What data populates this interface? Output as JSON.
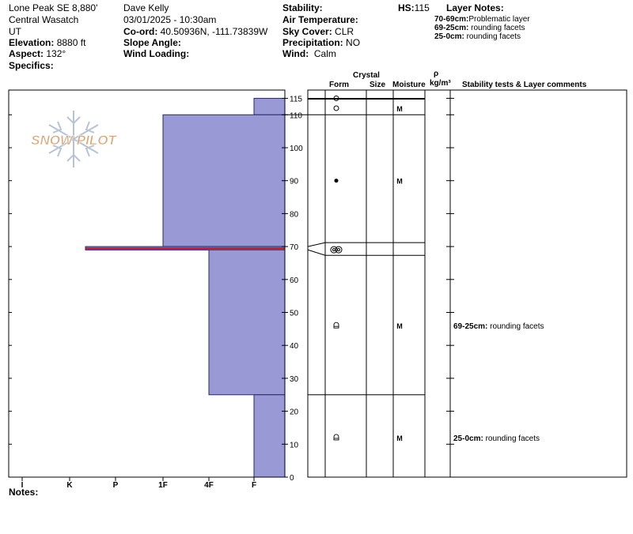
{
  "header": {
    "col1": {
      "location": "Lone Peak SE 8,880'",
      "range": "Central Wasatch",
      "state": "UT",
      "elevation_label": "Elevation:",
      "elevation_value": "8880 ft",
      "aspect_label": "Aspect:",
      "aspect_value": "132°",
      "specifics_label": "Specifics:"
    },
    "col2": {
      "observer": "Dave Kelly",
      "datetime": "03/01/2025 - 10:30am",
      "coord_label": "Co-ord:",
      "coord_value": "40.50936N, -111.73839W",
      "slope_label": "Slope Angle:",
      "wind_loading_label": "Wind Loading:"
    },
    "col3": {
      "stability_label": "Stability:",
      "air_temp_label": "Air Temperature:",
      "sky_label": "Sky Cover:",
      "sky_value": "CLR",
      "precip_label": "Precipitation:",
      "precip_value": "NO",
      "wind_label": "Wind:",
      "wind_value": "Calm"
    },
    "hs_label": "HS:",
    "hs_value": "115",
    "layer_notes_title": "Layer Notes:",
    "layer_notes": [
      {
        "range": "70-69cm:",
        "text": "Problematic layer"
      },
      {
        "range": "69-25cm:",
        "text": "rounding facets"
      },
      {
        "range": "25-0cm:",
        "text": "rounding facets"
      }
    ]
  },
  "columns": {
    "crystal": "Crystal",
    "form": "Form",
    "size": "Size",
    "moisture": "Moisture",
    "rho": "ρ",
    "density_unit": "kg/m³",
    "comments": "Stability tests & Layer comments"
  },
  "watermark": "SNOW PILOT",
  "notes_label": "Notes:",
  "colors": {
    "hardness_fill": "#9999d6",
    "hardness_stroke": "#2a2a6a",
    "weak_layer_red": "#cc0000",
    "weak_layer_blue": "#2a2aa0",
    "watermark_text": "#d9a87a",
    "watermark_flake": "#b7c4d4"
  },
  "chart_data": {
    "type": "snow_profile",
    "y_axis": {
      "unit": "cm",
      "range": [
        0,
        115
      ],
      "ticks": [
        0,
        10,
        20,
        30,
        40,
        50,
        60,
        70,
        80,
        90,
        100,
        110,
        115
      ]
    },
    "hardness_scale": [
      "I",
      "K",
      "P",
      "1F",
      "4F",
      "F"
    ],
    "hardness_layers": [
      {
        "top": 115,
        "bottom": 110,
        "hardness": "F"
      },
      {
        "top": 110,
        "bottom": 70,
        "hardness": "1F"
      },
      {
        "top": 70,
        "bottom": 69,
        "hardness": "P",
        "weak_layer": true
      },
      {
        "top": 69,
        "bottom": 25,
        "hardness": "4F"
      },
      {
        "top": 25,
        "bottom": 0,
        "hardness": "F"
      }
    ],
    "layer_boundaries": [
      115,
      110,
      70,
      69,
      25,
      0
    ],
    "grain_rows": [
      {
        "height": 115,
        "form": "new-snow-circle",
        "moisture": ""
      },
      {
        "height": 112,
        "form": "new-snow-circle",
        "moisture": "M"
      },
      {
        "height": 90,
        "form": "melt-form-dot",
        "moisture": "M"
      },
      {
        "height": 70,
        "form": "double-circle",
        "moisture": ""
      },
      {
        "height": 46,
        "form": "rounding-facet",
        "moisture": "M"
      },
      {
        "height": 12,
        "form": "rounding-facet",
        "moisture": "M"
      }
    ],
    "comments": [
      {
        "height": 46,
        "range": "69-25cm:",
        "text": "rounding facets"
      },
      {
        "height": 12,
        "range": "25-0cm:",
        "text": "rounding facets"
      }
    ]
  }
}
